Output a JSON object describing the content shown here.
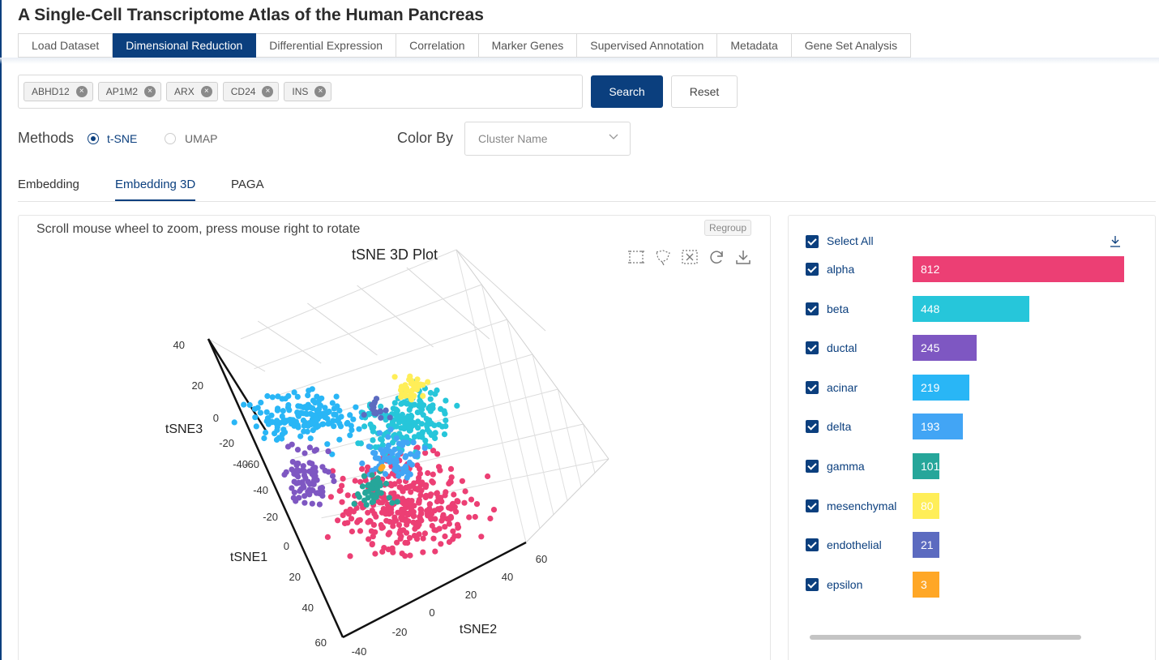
{
  "app": {
    "title": "A Single-Cell Transcriptome Atlas of the Human Pancreas"
  },
  "tabs": [
    {
      "label": "Load Dataset"
    },
    {
      "label": "Dimensional Reduction",
      "active": true
    },
    {
      "label": "Differential Expression"
    },
    {
      "label": "Correlation"
    },
    {
      "label": "Marker Genes"
    },
    {
      "label": "Supervised Annotation"
    },
    {
      "label": "Metadata"
    },
    {
      "label": "Gene Set Analysis"
    }
  ],
  "genes": [
    "ABHD12",
    "AP1M2",
    "ARX",
    "CD24",
    "INS"
  ],
  "buttons": {
    "search": "Search",
    "reset": "Reset"
  },
  "methods": {
    "label": "Methods",
    "options": [
      "t-SNE",
      "UMAP"
    ],
    "selected": "t-SNE"
  },
  "color_by": {
    "label": "Color By",
    "placeholder": "Cluster Name"
  },
  "subtabs": [
    {
      "label": "Embedding"
    },
    {
      "label": "Embedding 3D",
      "active": true
    },
    {
      "label": "PAGA"
    }
  ],
  "plot": {
    "hint": "Scroll mouse wheel to zoom, press mouse right to rotate",
    "regroup": "Regroup",
    "toolbar_icons": [
      "box-select-icon",
      "lasso-select-icon",
      "clear-selection-icon",
      "reset-view-icon",
      "download-icon"
    ]
  },
  "chart_data": {
    "type": "scatter",
    "title": "tSNE 3D Plot",
    "axes": {
      "x": {
        "label": "tSNE1",
        "ticks": [
          -40,
          -20,
          0,
          20,
          40,
          60
        ]
      },
      "y": {
        "label": "tSNE2",
        "ticks": [
          -40,
          -20,
          0,
          20,
          40,
          60
        ]
      },
      "z": {
        "label": "tSNE3",
        "ticks": [
          -60,
          -40,
          -20,
          0,
          20,
          40
        ]
      }
    },
    "series": [
      {
        "name": "alpha",
        "color": "#ec3f74"
      },
      {
        "name": "beta",
        "color": "#26c6da"
      },
      {
        "name": "ductal",
        "color": "#7e57c2"
      },
      {
        "name": "acinar",
        "color": "#29b6f6"
      },
      {
        "name": "delta",
        "color": "#42a5f5"
      },
      {
        "name": "gamma",
        "color": "#26a69a"
      },
      {
        "name": "mesenchymal",
        "color": "#ffee58"
      },
      {
        "name": "endothelial",
        "color": "#5c6bc0"
      },
      {
        "name": "epsilon",
        "color": "#ffa726"
      }
    ]
  },
  "legend": {
    "select_all": "Select All",
    "max_count": 812,
    "items": [
      {
        "name": "alpha",
        "count": 812,
        "color": "#ec3f74"
      },
      {
        "name": "beta",
        "count": 448,
        "color": "#26c6da"
      },
      {
        "name": "ductal",
        "count": 245,
        "color": "#7e57c2"
      },
      {
        "name": "acinar",
        "count": 219,
        "color": "#29b6f6"
      },
      {
        "name": "delta",
        "count": 193,
        "color": "#42a5f5"
      },
      {
        "name": "gamma",
        "count": 101,
        "color": "#26a69a"
      },
      {
        "name": "mesenchymal",
        "count": 80,
        "color": "#ffee58"
      },
      {
        "name": "endothelial",
        "count": 21,
        "color": "#5c6bc0"
      },
      {
        "name": "epsilon",
        "count": 3,
        "color": "#ffa726"
      }
    ]
  }
}
